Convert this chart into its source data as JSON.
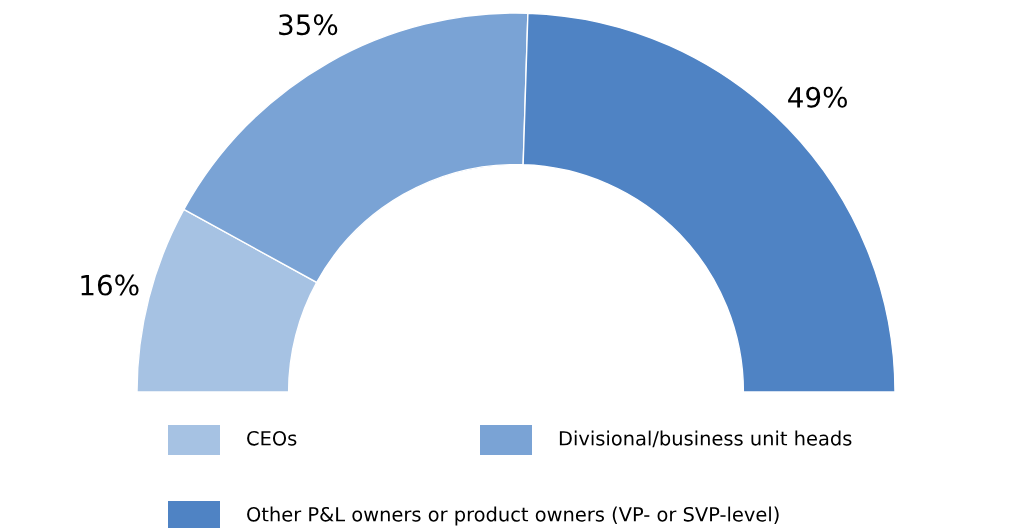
{
  "chart_data": {
    "type": "donut",
    "categories": [
      "CEOs",
      "Divisional/business unit heads",
      "Other P&L owners or product owners (VP- or SVP-level)"
    ],
    "values": [
      16,
      35,
      49
    ],
    "value_labels": [
      "16%",
      "35%",
      "49%"
    ],
    "colors": [
      "#a6c2e3",
      "#7aa3d5",
      "#4f83c4"
    ],
    "legend": "bottom"
  }
}
